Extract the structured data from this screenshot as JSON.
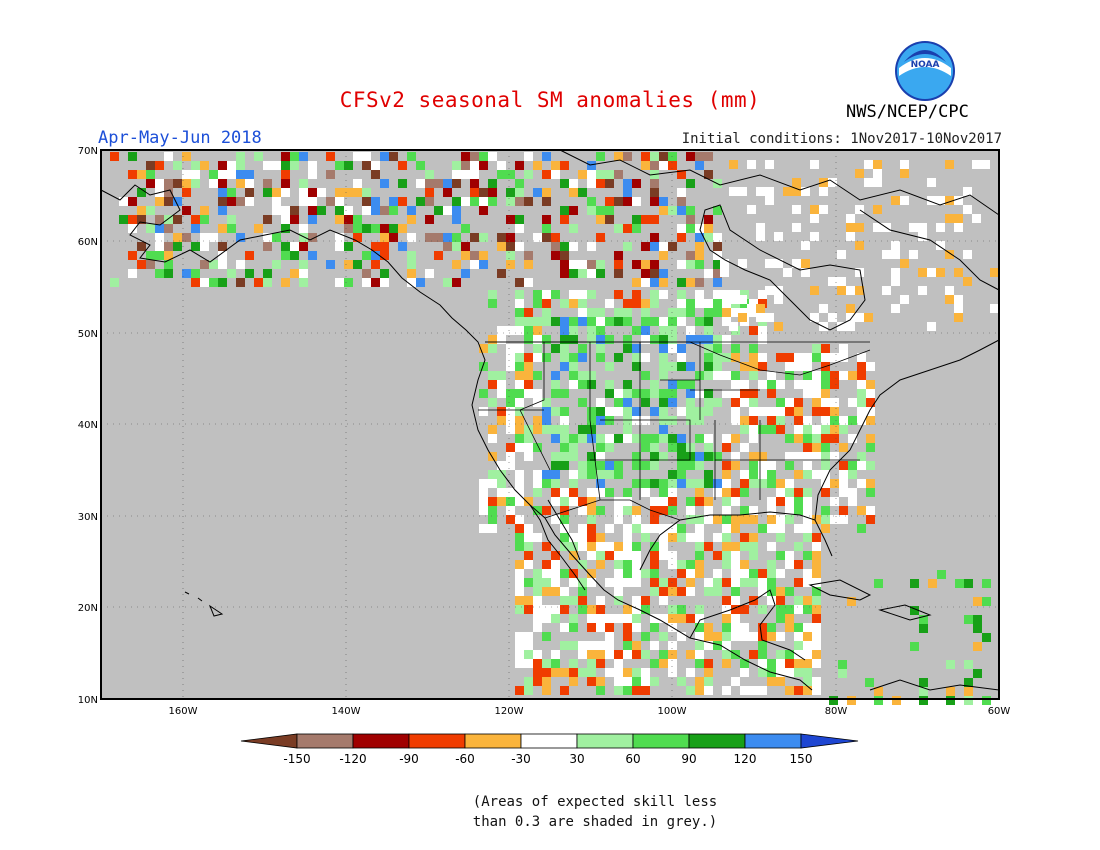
{
  "title": "CFSv2 seasonal SM anomalies (mm)",
  "agency": "NWS/NCEP/CPC",
  "logo_text": "NOAA",
  "season": "Apr-May-Jun 2018",
  "initial_conditions": "Initial conditions: 1Nov2017-10Nov2017",
  "note_line1": "(Areas of expected skill less",
  "note_line2": "than 0.3 are shaded in grey.)",
  "map": {
    "lon_range": [
      -170,
      -60
    ],
    "lat_range": [
      10,
      70
    ],
    "lat_ticks": [
      "10N",
      "20N",
      "30N",
      "40N",
      "50N",
      "60N",
      "70N"
    ],
    "lon_ticks": [
      "160W",
      "140W",
      "120W",
      "100W",
      "80W",
      "60W"
    ],
    "background": "#c0c0c0"
  },
  "colorbar": {
    "bounds": [
      "-150",
      "-120",
      "-90",
      "-60",
      "-30",
      "30",
      "60",
      "90",
      "120",
      "150"
    ],
    "colors": [
      "#7a3c24",
      "#a57a6c",
      "#a00000",
      "#f03c00",
      "#fab43c",
      "#ffffff",
      "#a0f0a0",
      "#50dc50",
      "#18a018",
      "#3c8cf0",
      "#1e46d2"
    ]
  },
  "colors": {
    "grey": "#c0c0c0",
    "white": "#ffffff",
    "lightgreen": "#a0f0a0",
    "green": "#50dc50",
    "darkgreen": "#18a018",
    "blue": "#3c8cf0",
    "darkblue": "#1e46d2",
    "orange": "#fab43c",
    "red": "#f03c00",
    "darkred": "#a00000",
    "brown": "#7a3c24",
    "lightbrown": "#a57a6c"
  }
}
